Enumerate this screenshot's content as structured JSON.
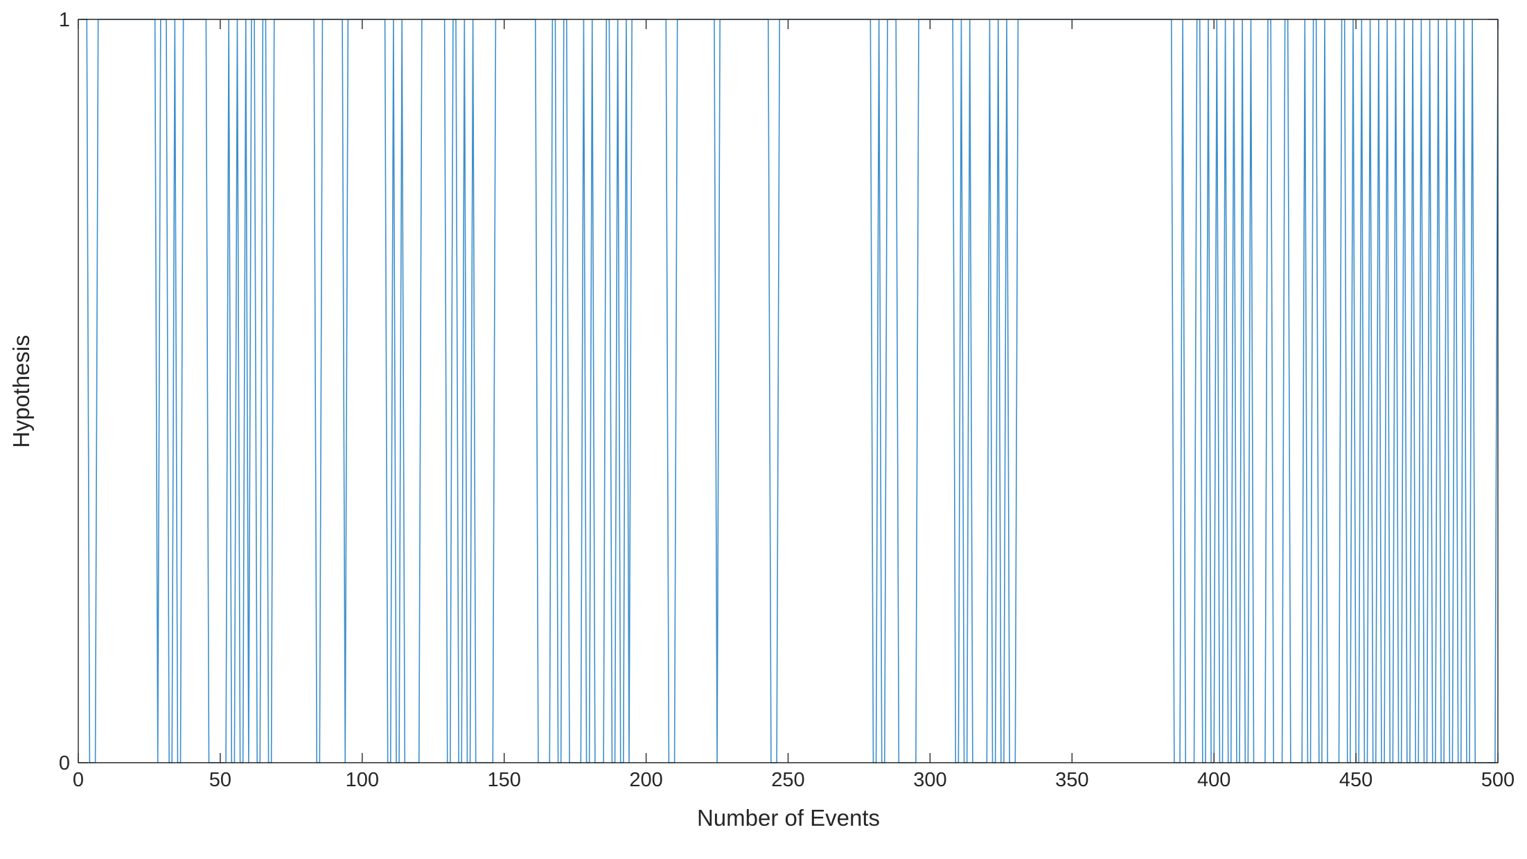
{
  "chart_data": {
    "type": "line",
    "xlabel": "Number of Events",
    "ylabel": "Hypothesis",
    "xlim": [
      0,
      500
    ],
    "xticks": [
      0,
      50,
      100,
      150,
      200,
      250,
      300,
      350,
      400,
      450,
      500
    ],
    "ylim": [
      0,
      1
    ],
    "yticks": [
      0,
      1
    ],
    "x": [
      1,
      2,
      3,
      4,
      5,
      6,
      7,
      8,
      9,
      10,
      11,
      12,
      13,
      14,
      15,
      16,
      17,
      18,
      19,
      20,
      21,
      22,
      23,
      24,
      25,
      26,
      27,
      28,
      29,
      30,
      31,
      32,
      33,
      34,
      35,
      36,
      37,
      38,
      39,
      40,
      41,
      42,
      43,
      44,
      45,
      46,
      47,
      48,
      49,
      50,
      51,
      52,
      53,
      54,
      55,
      56,
      57,
      58,
      59,
      60,
      61,
      62,
      63,
      64,
      65,
      66,
      67,
      68,
      69,
      70,
      71,
      72,
      73,
      74,
      75,
      76,
      77,
      78,
      79,
      80,
      81,
      82,
      83,
      84,
      85,
      86,
      87,
      88,
      89,
      90,
      91,
      92,
      93,
      94,
      95,
      96,
      97,
      98,
      99,
      100,
      101,
      102,
      103,
      104,
      105,
      106,
      107,
      108,
      109,
      110,
      111,
      112,
      113,
      114,
      115,
      116,
      117,
      118,
      119,
      120,
      121,
      122,
      123,
      124,
      125,
      126,
      127,
      128,
      129,
      130,
      131,
      132,
      133,
      134,
      135,
      136,
      137,
      138,
      139,
      140,
      141,
      142,
      143,
      144,
      145,
      146,
      147,
      148,
      149,
      150,
      151,
      152,
      153,
      154,
      155,
      156,
      157,
      158,
      159,
      160,
      161,
      162,
      163,
      164,
      165,
      166,
      167,
      168,
      169,
      170,
      171,
      172,
      173,
      174,
      175,
      176,
      177,
      178,
      179,
      180,
      181,
      182,
      183,
      184,
      185,
      186,
      187,
      188,
      189,
      190,
      191,
      192,
      193,
      194,
      195,
      196,
      197,
      198,
      199,
      200,
      201,
      202,
      203,
      204,
      205,
      206,
      207,
      208,
      209,
      210,
      211,
      212,
      213,
      214,
      215,
      216,
      217,
      218,
      219,
      220,
      221,
      222,
      223,
      224,
      225,
      226,
      227,
      228,
      229,
      230,
      231,
      232,
      233,
      234,
      235,
      236,
      237,
      238,
      239,
      240,
      241,
      242,
      243,
      244,
      245,
      246,
      247,
      248,
      249,
      250,
      251,
      252,
      253,
      254,
      255,
      256,
      257,
      258,
      259,
      260,
      261,
      262,
      263,
      264,
      265,
      266,
      267,
      268,
      269,
      270,
      271,
      272,
      273,
      274,
      275,
      276,
      277,
      278,
      279,
      280,
      281,
      282,
      283,
      284,
      285,
      286,
      287,
      288,
      289,
      290,
      291,
      292,
      293,
      294,
      295,
      296,
      297,
      298,
      299,
      300,
      301,
      302,
      303,
      304,
      305,
      306,
      307,
      308,
      309,
      310,
      311,
      312,
      313,
      314,
      315,
      316,
      317,
      318,
      319,
      320,
      321,
      322,
      323,
      324,
      325,
      326,
      327,
      328,
      329,
      330,
      331,
      332,
      333,
      334,
      335,
      336,
      337,
      338,
      339,
      340,
      341,
      342,
      343,
      344,
      345,
      346,
      347,
      348,
      349,
      350,
      351,
      352,
      353,
      354,
      355,
      356,
      357,
      358,
      359,
      360,
      361,
      362,
      363,
      364,
      365,
      366,
      367,
      368,
      369,
      370,
      371,
      372,
      373,
      374,
      375,
      376,
      377,
      378,
      379,
      380,
      381,
      382,
      383,
      384,
      385,
      386,
      387,
      388,
      389,
      390,
      391,
      392,
      393,
      394,
      395,
      396,
      397,
      398,
      399,
      400,
      401,
      402,
      403,
      404,
      405,
      406,
      407,
      408,
      409,
      410,
      411,
      412,
      413,
      414,
      415,
      416,
      417,
      418,
      419,
      420,
      421,
      422,
      423,
      424,
      425,
      426,
      427,
      428,
      429,
      430,
      431,
      432,
      433,
      434,
      435,
      436,
      437,
      438,
      439,
      440,
      441,
      442,
      443,
      444,
      445,
      446,
      447,
      448,
      449,
      450,
      451,
      452,
      453,
      454,
      455,
      456,
      457,
      458,
      459,
      460,
      461,
      462,
      463,
      464,
      465,
      466,
      467,
      468,
      469,
      470,
      471,
      472,
      473,
      474,
      475,
      476,
      477,
      478,
      479,
      480,
      481,
      482,
      483,
      484,
      485,
      486,
      487,
      488,
      489,
      490,
      491,
      492,
      493,
      494,
      495,
      496,
      497,
      498,
      499,
      500
    ],
    "series": [
      {
        "color": "#3d8fcc",
        "values": [
          1,
          1,
          1,
          0,
          0,
          0,
          1,
          1,
          1,
          1,
          1,
          1,
          1,
          1,
          1,
          1,
          1,
          1,
          1,
          1,
          1,
          1,
          1,
          1,
          1,
          1,
          1,
          0,
          1,
          1,
          1,
          0,
          0,
          1,
          0,
          0,
          1,
          1,
          1,
          1,
          1,
          1,
          1,
          1,
          1,
          0,
          0,
          0,
          0,
          0,
          0,
          0,
          1,
          0,
          0,
          1,
          0,
          0,
          1,
          0,
          1,
          1,
          0,
          0,
          1,
          1,
          0,
          0,
          1,
          1,
          1,
          1,
          1,
          1,
          1,
          1,
          1,
          1,
          1,
          1,
          1,
          1,
          1,
          0,
          0,
          1,
          1,
          1,
          1,
          1,
          1,
          1,
          1,
          0,
          1,
          1,
          1,
          1,
          1,
          1,
          1,
          1,
          1,
          1,
          1,
          1,
          1,
          1,
          0,
          0,
          1,
          0,
          0,
          1,
          0,
          0,
          0,
          0,
          0,
          0,
          1,
          1,
          1,
          1,
          1,
          1,
          1,
          1,
          1,
          0,
          0,
          1,
          1,
          0,
          0,
          1,
          0,
          0,
          1,
          0,
          0,
          0,
          0,
          0,
          0,
          0,
          1,
          1,
          1,
          1,
          1,
          1,
          1,
          1,
          1,
          1,
          1,
          1,
          1,
          1,
          1,
          0,
          0,
          0,
          0,
          0,
          1,
          1,
          0,
          0,
          1,
          1,
          0,
          0,
          0,
          0,
          0,
          1,
          0,
          0,
          1,
          0,
          0,
          0,
          0,
          1,
          1,
          0,
          0,
          1,
          0,
          0,
          1,
          0,
          1,
          1,
          1,
          1,
          1,
          1,
          1,
          1,
          1,
          1,
          1,
          1,
          1,
          0,
          0,
          0,
          1,
          1,
          1,
          1,
          1,
          1,
          1,
          1,
          1,
          1,
          1,
          1,
          1,
          1,
          0,
          1,
          1,
          1,
          1,
          1,
          1,
          1,
          1,
          1,
          1,
          1,
          1,
          1,
          1,
          1,
          1,
          1,
          1,
          0,
          0,
          0,
          1,
          1,
          1,
          1,
          1,
          1,
          1,
          1,
          1,
          1,
          1,
          1,
          1,
          1,
          1,
          1,
          1,
          1,
          1,
          1,
          1,
          1,
          1,
          1,
          1,
          1,
          1,
          1,
          1,
          1,
          1,
          1,
          1,
          0,
          0,
          1,
          0,
          0,
          1,
          1,
          1,
          1,
          0,
          0,
          0,
          0,
          0,
          0,
          0,
          1,
          1,
          1,
          1,
          1,
          1,
          1,
          1,
          1,
          1,
          1,
          1,
          1,
          0,
          0,
          1,
          0,
          0,
          1,
          0,
          0,
          0,
          0,
          0,
          0,
          1,
          0,
          0,
          1,
          0,
          0,
          1,
          0,
          0,
          0,
          1,
          1,
          1,
          1,
          1,
          1,
          1,
          1,
          1,
          1,
          1,
          1,
          1,
          1,
          1,
          1,
          1,
          1,
          1,
          1,
          1,
          1,
          1,
          1,
          1,
          1,
          1,
          1,
          1,
          1,
          1,
          1,
          1,
          1,
          1,
          1,
          1,
          1,
          1,
          1,
          1,
          1,
          1,
          1,
          1,
          1,
          1,
          1,
          1,
          1,
          1,
          1,
          1,
          1,
          1,
          0,
          0,
          0,
          1,
          0,
          0,
          0,
          0,
          1,
          1,
          0,
          0,
          1,
          0,
          0,
          1,
          0,
          0,
          1,
          0,
          0,
          1,
          0,
          0,
          1,
          0,
          0,
          1,
          0,
          0,
          0,
          0,
          0,
          1,
          1,
          0,
          0,
          0,
          0,
          1,
          1,
          0,
          0,
          0,
          0,
          0,
          1,
          0,
          0,
          1,
          1,
          0,
          0,
          1,
          0,
          0,
          0,
          0,
          0,
          1,
          1,
          0,
          0,
          1,
          0,
          0,
          1,
          0,
          0,
          1,
          0,
          0,
          1,
          0,
          0,
          1,
          0,
          0,
          1,
          0,
          0,
          1,
          0,
          0,
          1,
          0,
          0,
          1,
          0,
          0,
          1,
          0,
          0,
          1,
          0,
          0,
          1,
          0,
          0,
          1,
          0,
          0,
          1,
          0,
          0,
          1,
          0,
          0,
          0,
          0,
          0,
          0,
          0,
          0,
          1
        ]
      }
    ]
  }
}
